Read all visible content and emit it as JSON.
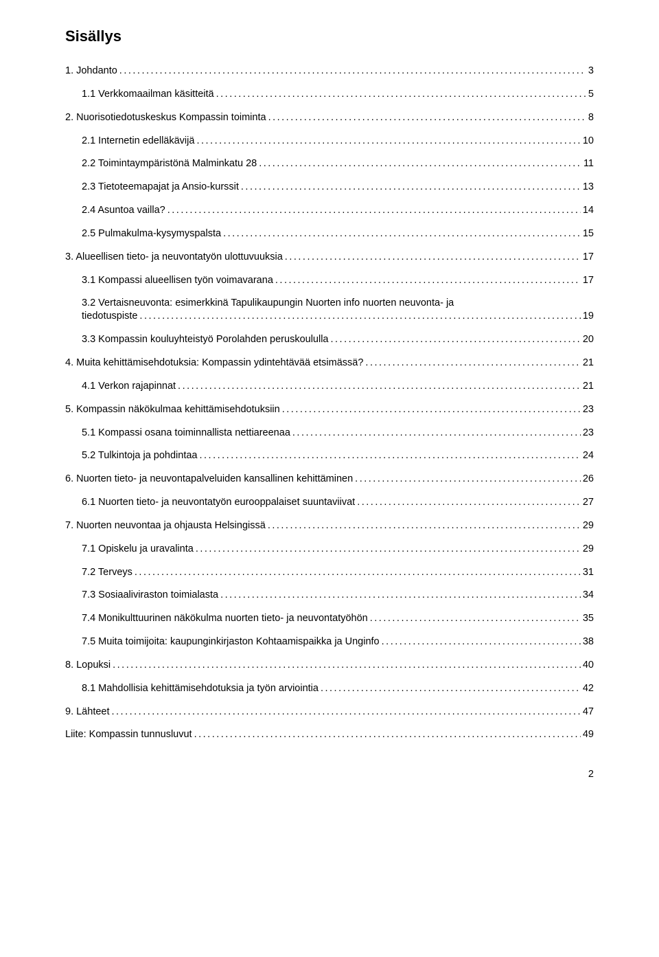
{
  "title": "Sisällys",
  "entries": [
    {
      "label": "1. Johdanto",
      "page": "3",
      "level": 0
    },
    {
      "label": "1.1 Verkkomaailman käsitteitä",
      "page": "5",
      "level": 1
    },
    {
      "label": "2. Nuorisotiedotuskeskus Kompassin toiminta",
      "page": "8",
      "level": 0
    },
    {
      "label": "2.1 Internetin edelläkävijä",
      "page": "10",
      "level": 1
    },
    {
      "label": "2.2 Toimintaympäristönä Malminkatu 28",
      "page": "11",
      "level": 1
    },
    {
      "label": "2.3 Tietoteemapajat ja Ansio-kurssit",
      "page": "13",
      "level": 1
    },
    {
      "label": "2.4 Asuntoa vailla?",
      "page": "14",
      "level": 1
    },
    {
      "label": "2.5 Pulmakulma-kysymyspalsta",
      "page": "15",
      "level": 1
    },
    {
      "label": "3. Alueellisen tieto- ja neuvontatyön ulottuvuuksia",
      "page": "17",
      "level": 0
    },
    {
      "label": "3.1 Kompassi alueellisen työn voimavarana",
      "page": "17",
      "level": 1
    },
    {
      "label": "3.2 Vertaisneuvonta: esimerkkinä Tapulikaupungin Nuorten info nuorten neuvonta- ja tiedotuspiste",
      "page": "19",
      "level": 1
    },
    {
      "label": "3.3 Kompassin kouluyhteistyö Porolahden peruskoululla",
      "page": "20",
      "level": 1
    },
    {
      "label": "4. Muita kehittämisehdotuksia: Kompassin ydintehtävää etsimässä?",
      "page": "21",
      "level": 0
    },
    {
      "label": "4.1 Verkon rajapinnat",
      "page": "21",
      "level": 1
    },
    {
      "label": "5. Kompassin näkökulmaa kehittämisehdotuksiin",
      "page": "23",
      "level": 0
    },
    {
      "label": "5.1 Kompassi osana toiminnallista nettiareenaa",
      "page": "23",
      "level": 1
    },
    {
      "label": "5.2 Tulkintoja ja pohdintaa",
      "page": "24",
      "level": 1
    },
    {
      "label": "6. Nuorten tieto- ja neuvontapalveluiden kansallinen kehittäminen",
      "page": "26",
      "level": 0
    },
    {
      "label": "6.1 Nuorten tieto- ja neuvontatyön eurooppalaiset suuntaviivat",
      "page": "27",
      "level": 1
    },
    {
      "label": "7. Nuorten neuvontaa ja ohjausta Helsingissä",
      "page": "29",
      "level": 0
    },
    {
      "label": "7.1 Opiskelu ja uravalinta",
      "page": "29",
      "level": 1
    },
    {
      "label": "7.2 Terveys",
      "page": "31",
      "level": 1
    },
    {
      "label": "7.3 Sosiaaliviraston toimialasta",
      "page": "34",
      "level": 1
    },
    {
      "label": "7.4 Monikulttuurinen näkökulma nuorten tieto- ja neuvontatyöhön",
      "page": "35",
      "level": 1
    },
    {
      "label": "7.5 Muita toimijoita: kaupunginkirjaston Kohtaamispaikka ja Unginfo",
      "page": "38",
      "level": 1
    },
    {
      "label": "8. Lopuksi",
      "page": "40",
      "level": 0
    },
    {
      "label": "8.1 Mahdollisia kehittämisehdotuksia ja työn arviointia",
      "page": "42",
      "level": 1
    },
    {
      "label": "9. Lähteet",
      "page": "47",
      "level": 0
    },
    {
      "label": "Liite: Kompassin tunnusluvut",
      "page": "49",
      "level": 0
    }
  ],
  "pageNumber": "2",
  "colors": {
    "text": "#000000",
    "background": "#ffffff"
  },
  "typography": {
    "title_fontsize": 22,
    "body_fontsize": 14.5,
    "font_family": "Arial"
  }
}
